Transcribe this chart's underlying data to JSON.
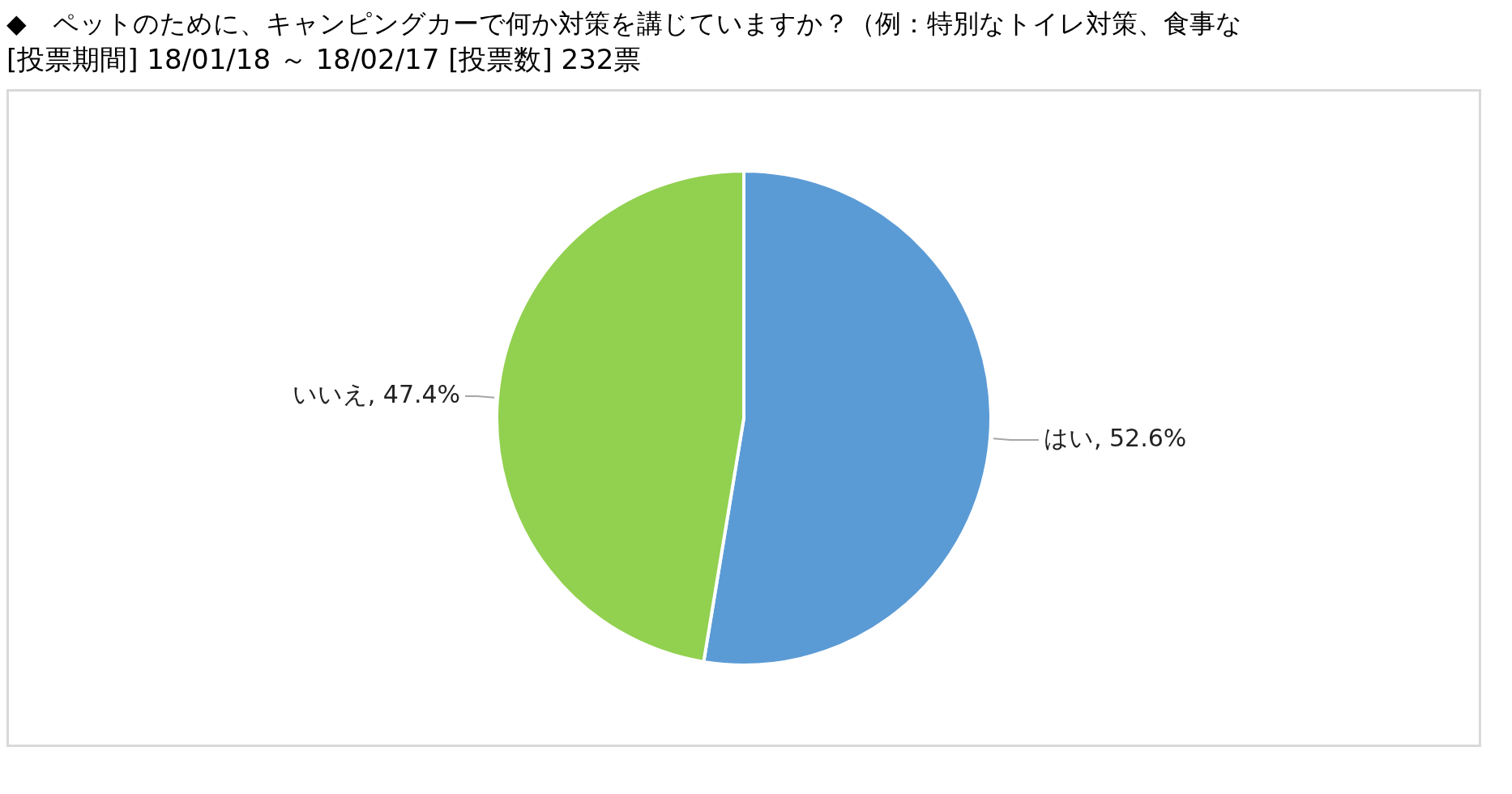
{
  "chart_data": {
    "type": "pie",
    "title": "◆　ペットのために、キャンピングカーで何か対策を講じていますか？（例：特別なトイレ対策、食事な",
    "subtitle": "[投票期間] 18/01/18 ～ 18/02/17 [投票数] 232票",
    "categories": [
      "はい",
      "いいえ"
    ],
    "values": [
      52.6,
      47.4
    ],
    "colors": [
      "#5b9bd5",
      "#92d050"
    ],
    "value_labels": [
      "52.6%",
      "47.4%"
    ],
    "legend": false
  }
}
